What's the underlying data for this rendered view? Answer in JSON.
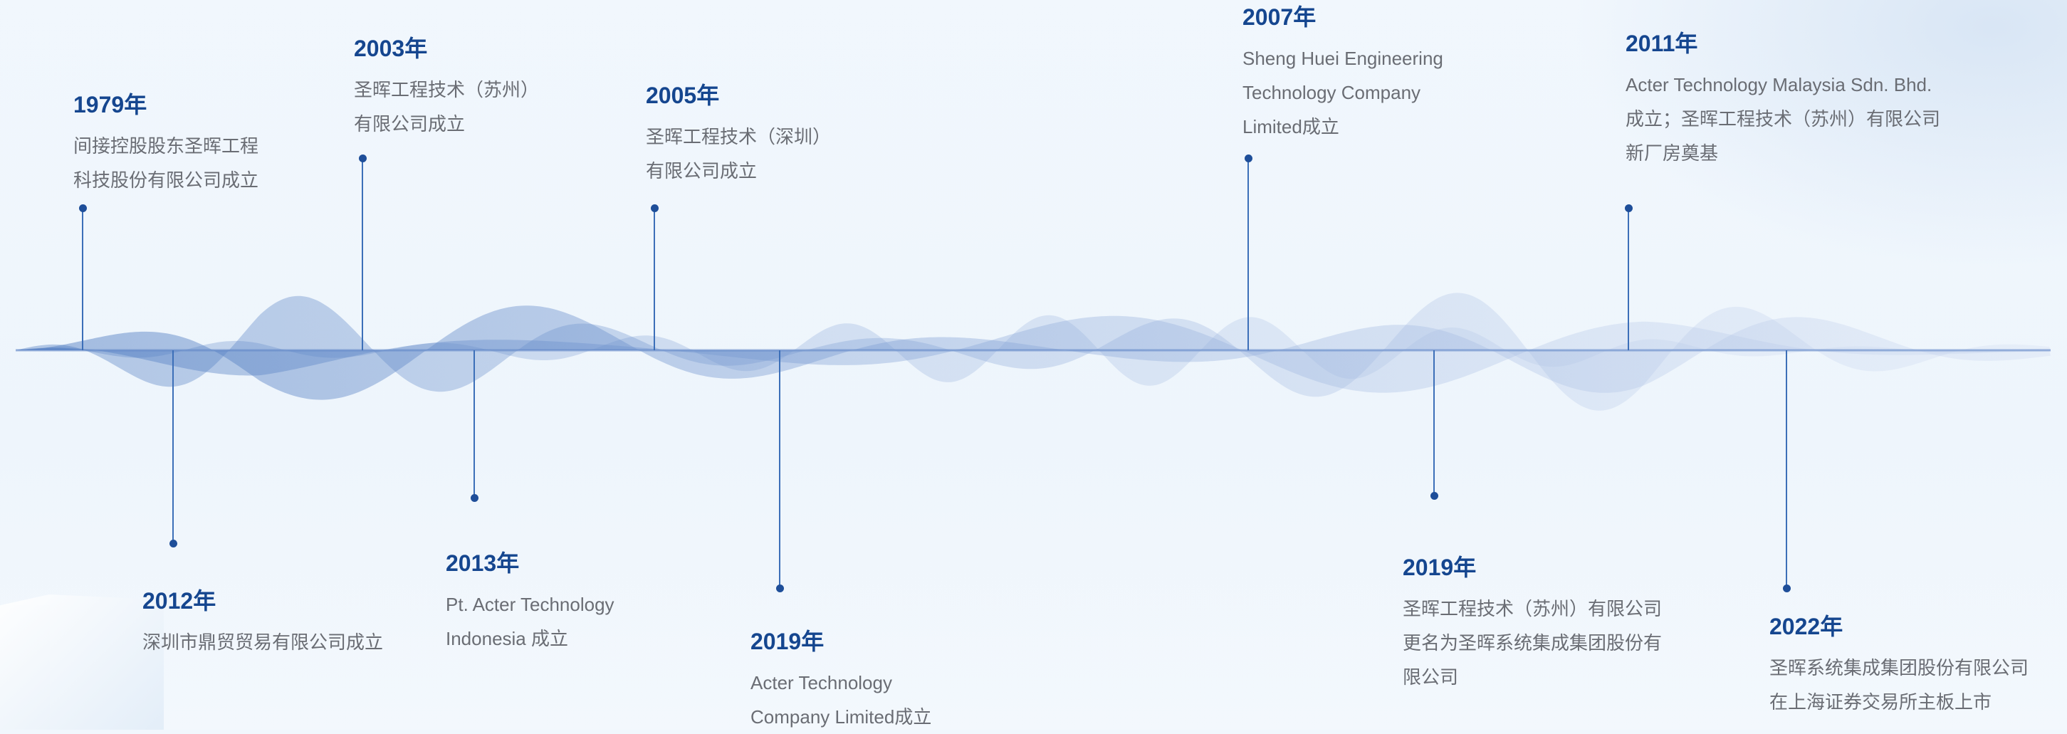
{
  "colors": {
    "year": "#15468f",
    "text": "#6a6d74",
    "stem": "#3c6fb8",
    "dot": "#1e4e99",
    "wave_dark": "#4a78bf",
    "wave_light": "#c3d1ec"
  },
  "events": [
    {
      "year": "1979年",
      "lines": [
        "间接控股股东圣晖工程",
        "科技股份有限公司成立"
      ]
    },
    {
      "year": "2003年",
      "lines": [
        "圣晖工程技术（苏州）",
        "有限公司成立"
      ]
    },
    {
      "year": "2005年",
      "lines": [
        "圣晖工程技术（深圳）",
        "有限公司成立"
      ]
    },
    {
      "year": "2007年",
      "lines": [
        "Sheng Huei Engineering",
        "Technology Company",
        "Limited成立"
      ]
    },
    {
      "year": "2011年",
      "lines": [
        "Acter Technology Malaysia Sdn. Bhd.",
        "成立；圣晖工程技术（苏州）有限公司",
        "新厂房奠基"
      ]
    },
    {
      "year": "2012年",
      "lines": [
        "深圳市鼎贸贸易有限公司成立"
      ]
    },
    {
      "year": "2013年",
      "lines": [
        "Pt. Acter Technology",
        "Indonesia 成立"
      ]
    },
    {
      "year": "2019年",
      "lines": [
        "Acter Technology",
        "Company Limited成立"
      ]
    },
    {
      "year": "2019年",
      "lines": [
        "圣晖工程技术（苏州）有限公司",
        "更名为圣晖系统集成集团股份有",
        "限公司"
      ]
    },
    {
      "year": "2022年",
      "lines": [
        "圣晖系统集成集团股份有限公司",
        "在上海证券交易所主板上市"
      ]
    }
  ]
}
